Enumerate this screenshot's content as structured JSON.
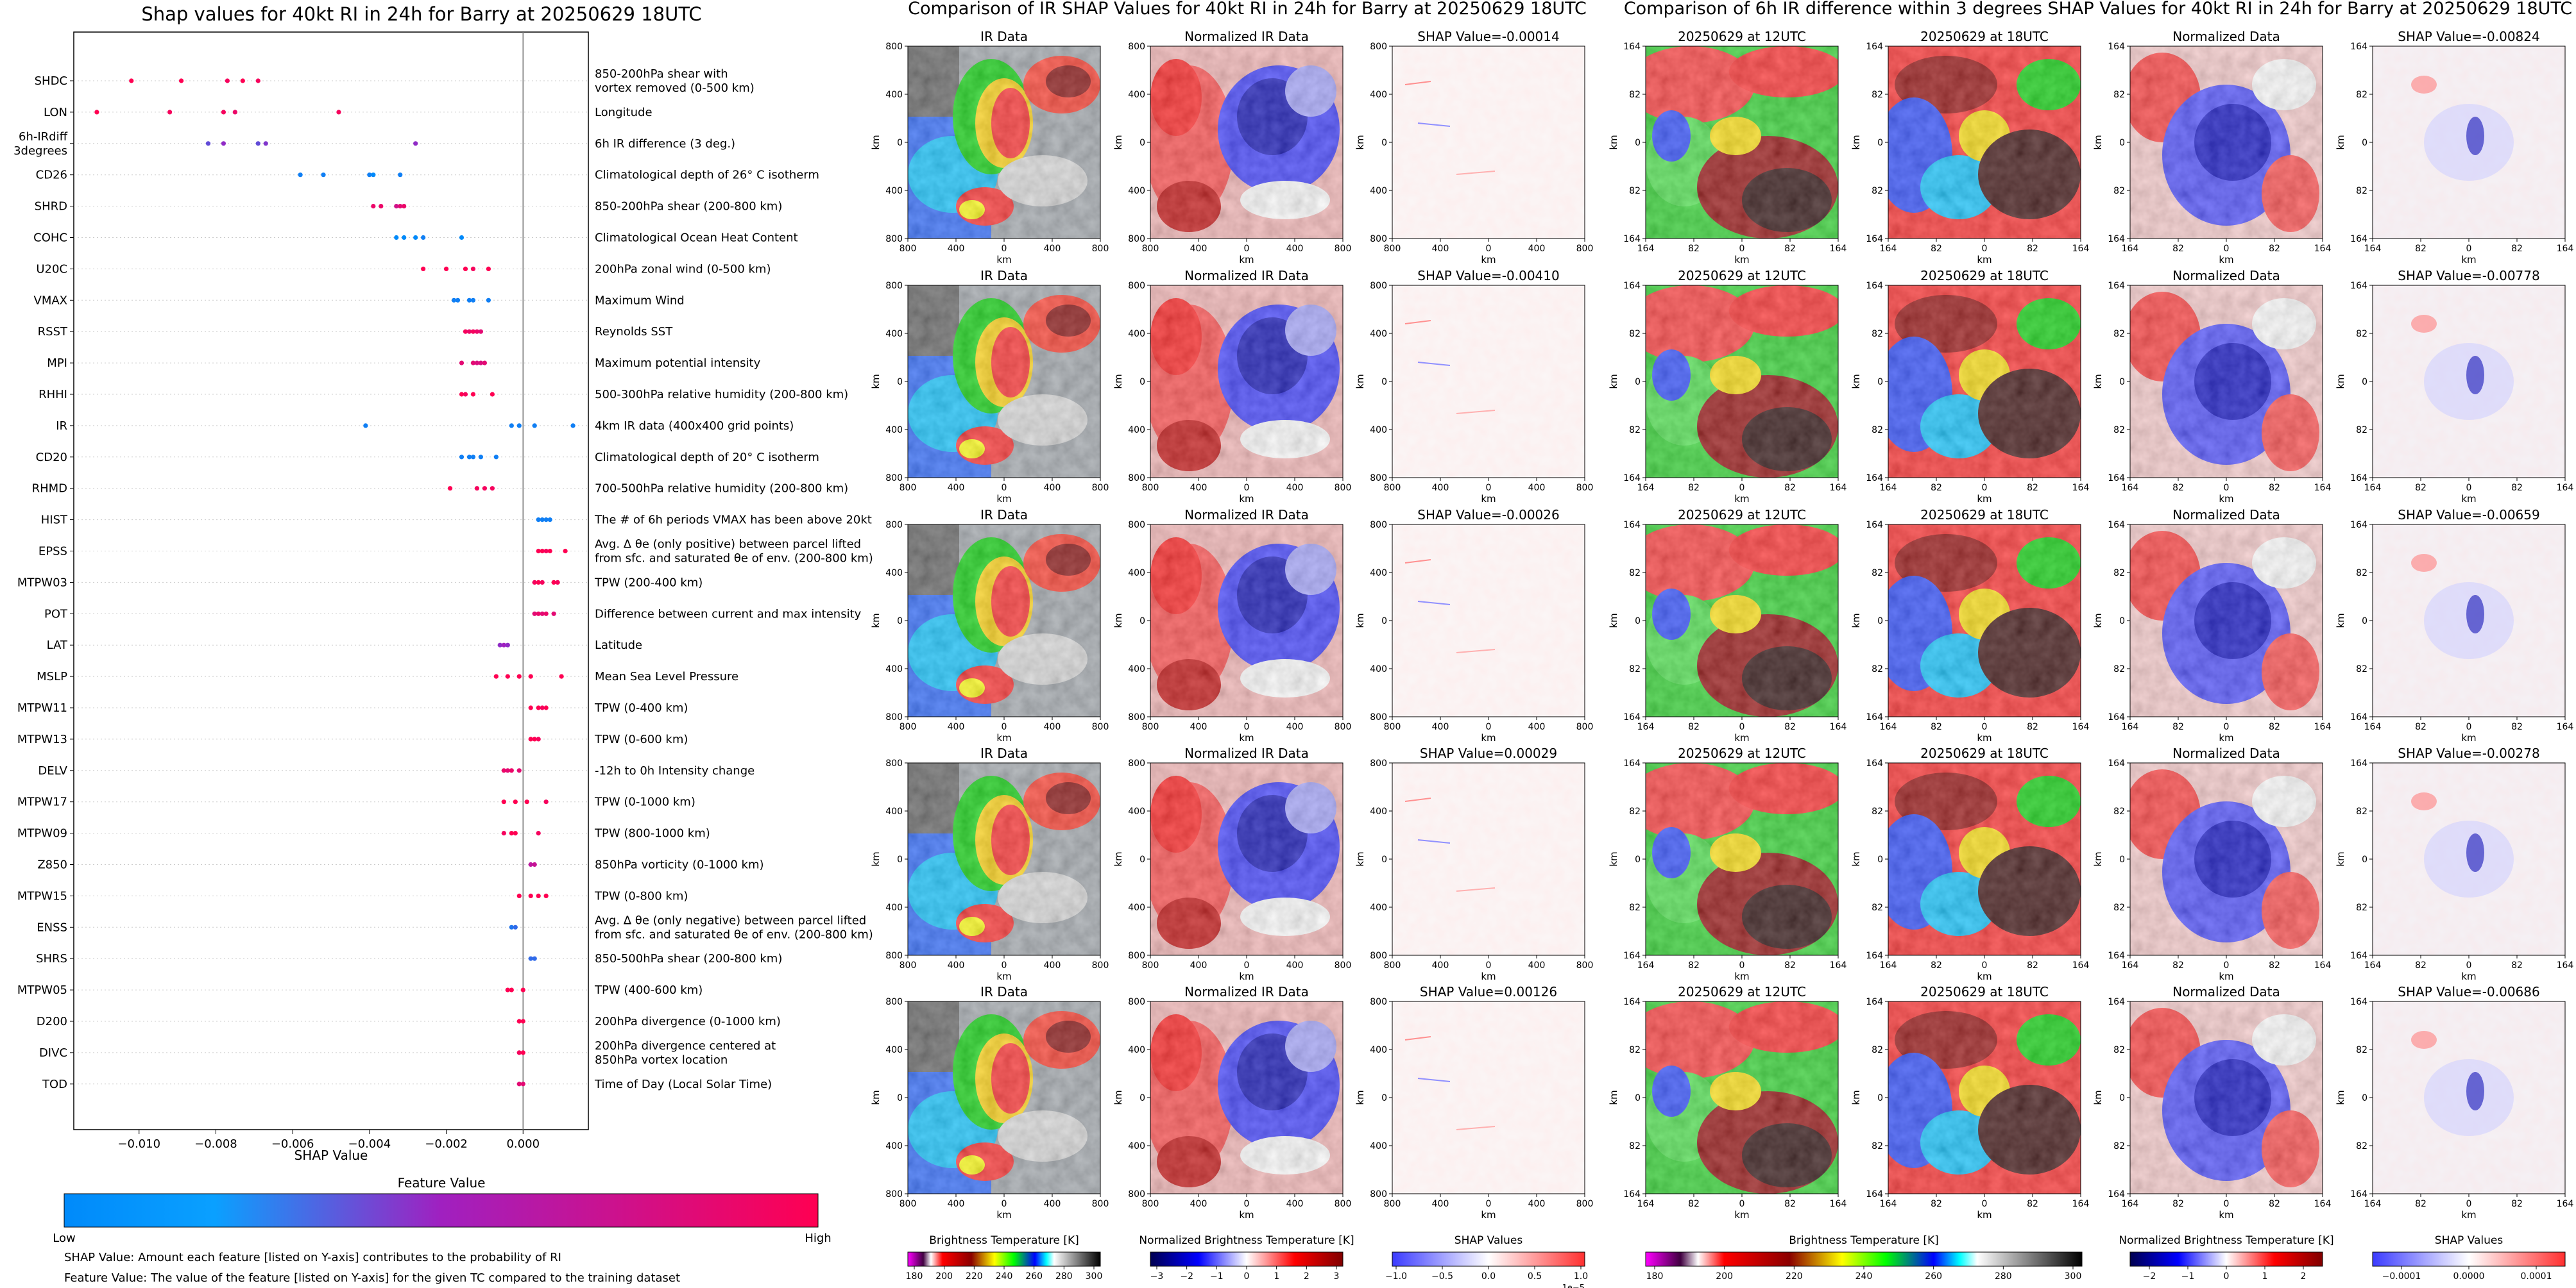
{
  "shap_panel": {
    "title": "Shap values for 40kt RI in 24h for Barry at 20250629 18UTC",
    "xlabel": "SHAP Value",
    "colorbar_title": "Feature Value",
    "colorbar_low": "Low",
    "colorbar_high": "High",
    "note_shap": "SHAP Value: Amount each feature [listed on Y-axis] contributes to the probability of RI",
    "note_feature": "Feature Value: The value of the feature [listed on Y-axis] for the given TC compared to the training dataset"
  },
  "ir_block": {
    "title": "Comparison of IR SHAP Values for 40kt RI in 24h for Barry at 20250629 18UTC",
    "col_titles": [
      "IR Data",
      "Normalized IR Data"
    ],
    "shap_titles": [
      "SHAP Value=-0.00014",
      "SHAP Value=-0.00410",
      "SHAP Value=-0.00026",
      "SHAP Value=0.00029",
      "SHAP Value=0.00126"
    ],
    "axis_label": "km",
    "ticks": [
      "800",
      "400",
      "0",
      "400",
      "800"
    ],
    "colorbars": [
      {
        "label": "Brightness Temperature [K]",
        "ticks": [
          "180",
          "200",
          "220",
          "240",
          "260",
          "280",
          "300"
        ]
      },
      {
        "label": "Normalized Brightness Temperature [K]",
        "ticks": [
          "−3",
          "−2",
          "−1",
          "0",
          "1",
          "2",
          "3"
        ]
      },
      {
        "label": "SHAP Values",
        "ticks": [
          "−1.0",
          "−0.5",
          "0.0",
          "0.5",
          "1.0"
        ],
        "offset": "1e−5"
      }
    ]
  },
  "diff_block": {
    "title": "Comparison of 6h IR difference within 3 degrees SHAP Values for 40kt RI in 24h for Barry at 20250629 18UTC",
    "col_titles": [
      "20250629 at 12UTC",
      "20250629 at 18UTC",
      "Normalized Data"
    ],
    "shap_titles": [
      "SHAP Value=-0.00824",
      "SHAP Value=-0.00778",
      "SHAP Value=-0.00659",
      "SHAP Value=-0.00278",
      "SHAP Value=-0.00686"
    ],
    "axis_label": "km",
    "ticks": [
      "164",
      "82",
      "0",
      "82",
      "164"
    ],
    "colorbars": [
      {
        "label": "Brightness Temperature [K]",
        "ticks": [
          "180",
          "200",
          "220",
          "240",
          "260",
          "280",
          "300"
        ]
      },
      {
        "label": "Normalized Brightness Temperature [K]",
        "ticks": [
          "−2",
          "−1",
          "0",
          "1",
          "2"
        ]
      },
      {
        "label": "SHAP Values",
        "ticks": [
          "−0.0001",
          "0.0000",
          "0.0001"
        ]
      }
    ]
  },
  "chart_data": {
    "type": "scatter",
    "title": "Shap values for 40kt RI in 24h for Barry at 20250629 18UTC",
    "xlabel": "SHAP Value",
    "ylabel": "",
    "xlim": [
      -0.0117,
      0.0017
    ],
    "xticks": [
      -0.01,
      -0.008,
      -0.006,
      -0.004,
      -0.002,
      0.0
    ],
    "xtick_labels": [
      "−0.010",
      "−0.008",
      "−0.006",
      "−0.004",
      "−0.002",
      "0.000"
    ],
    "colors": {
      "low": "#008afa",
      "mid": "#a020c0",
      "high": "#ff0052"
    },
    "features": [
      {
        "name": "SHDC",
        "description": "850-200hPa shear with\nvortex removed (0-500 km)",
        "shap": [
          -0.0102,
          -0.0089,
          -0.0077,
          -0.0073,
          -0.0069
        ],
        "value": [
          1,
          1,
          0.95,
          1,
          0.95
        ]
      },
      {
        "name": "LON",
        "description": "Longitude",
        "shap": [
          -0.0111,
          -0.0092,
          -0.0078,
          -0.0075,
          -0.0048
        ],
        "value": [
          1,
          0.95,
          0.95,
          0.9,
          0.95
        ]
      },
      {
        "name": "6h-IRdiff\n3degrees",
        "description": "6h IR difference (3 deg.)",
        "shap": [
          -0.0082,
          -0.0078,
          -0.0069,
          -0.0067,
          -0.0028
        ],
        "value": [
          0.3,
          0.45,
          0.3,
          0.4,
          0.45
        ]
      },
      {
        "name": "CD26",
        "description": "Climatological depth of 26° C isotherm",
        "shap": [
          -0.0058,
          -0.0052,
          -0.004,
          -0.0039,
          -0.0032
        ],
        "value": [
          0.05,
          0.05,
          0.05,
          0,
          0.05
        ]
      },
      {
        "name": "SHRD",
        "description": "850-200hPa shear (200-800 km)",
        "shap": [
          -0.0039,
          -0.0037,
          -0.0033,
          -0.0032,
          -0.0031
        ],
        "value": [
          0.9,
          0.9,
          0.75,
          0.85,
          0.9
        ]
      },
      {
        "name": "COHC",
        "description": "Climatological Ocean Heat Content",
        "shap": [
          -0.0033,
          -0.0031,
          -0.0028,
          -0.0026,
          -0.0016
        ],
        "value": [
          0,
          0,
          0,
          0.05,
          0
        ]
      },
      {
        "name": "U20C",
        "description": "200hPa zonal wind (0-500 km)",
        "shap": [
          -0.0026,
          -0.002,
          -0.0015,
          -0.0013,
          -0.0009
        ],
        "value": [
          1,
          1,
          1,
          0.95,
          1
        ]
      },
      {
        "name": "VMAX",
        "description": "Maximum Wind",
        "shap": [
          -0.0018,
          -0.0017,
          -0.0014,
          -0.0013,
          -0.0009
        ],
        "value": [
          0.05,
          0.05,
          0.05,
          0.05,
          0.05
        ]
      },
      {
        "name": "RSST",
        "description": "Reynolds SST",
        "shap": [
          -0.0015,
          -0.0014,
          -0.0013,
          -0.0012,
          -0.0011
        ],
        "value": [
          0.95,
          0.9,
          0.95,
          0.9,
          0.85
        ]
      },
      {
        "name": "MPI",
        "description": "Maximum potential intensity",
        "shap": [
          -0.0016,
          -0.0013,
          -0.0012,
          -0.0011,
          -0.001
        ],
        "value": [
          0.85,
          0.85,
          0.8,
          0.8,
          0.85
        ]
      },
      {
        "name": "RHHI",
        "description": "500-300hPa relative humidity (200-800 km)",
        "shap": [
          -0.0016,
          -0.0015,
          -0.0013,
          -0.0008
        ],
        "value": [
          1,
          0.95,
          1,
          1
        ]
      },
      {
        "name": "IR",
        "description": "4km IR data (400x400 grid points)",
        "shap": [
          -0.0041,
          -0.0003,
          -0.0001,
          0.0003,
          0.0013
        ],
        "value": [
          0.05,
          0.05,
          0.05,
          0.05,
          0.05
        ]
      },
      {
        "name": "CD20",
        "description": "Climatological depth of 20° C isotherm",
        "shap": [
          -0.0016,
          -0.0014,
          -0.0013,
          -0.0011,
          -0.0007
        ],
        "value": [
          0.05,
          0.05,
          0.05,
          0.05,
          0.05
        ]
      },
      {
        "name": "RHMD",
        "description": "700-500hPa relative humidity (200-800 km)",
        "shap": [
          -0.0019,
          -0.0012,
          -0.001,
          -0.0008
        ],
        "value": [
          1,
          0.95,
          0.95,
          0.95
        ]
      },
      {
        "name": "HIST",
        "description": "The # of 6h periods VMAX has been above 20kt",
        "shap": [
          0.0004,
          0.0005,
          0.0006,
          0.0007
        ],
        "value": [
          0.05,
          0.05,
          0.05,
          0.05
        ]
      },
      {
        "name": "EPSS",
        "description": "Avg. Δ θe (only positive) between parcel lifted\nfrom sfc. and saturated θe of env. (200-800 km)",
        "shap": [
          0.0004,
          0.0005,
          0.0006,
          0.0007,
          0.0011
        ],
        "value": [
          1,
          1,
          0.95,
          1,
          1
        ]
      },
      {
        "name": "MTPW03",
        "description": "TPW (200-400 km)",
        "shap": [
          0.0003,
          0.0004,
          0.0005,
          0.0008,
          0.0009
        ],
        "value": [
          0.95,
          1,
          0.95,
          1,
          0.95
        ]
      },
      {
        "name": "POT",
        "description": "Difference between current and max intensity",
        "shap": [
          0.0003,
          0.0004,
          0.0005,
          0.0006,
          0.0008
        ],
        "value": [
          0.85,
          0.9,
          0.85,
          0.9,
          0.85
        ]
      },
      {
        "name": "LAT",
        "description": "Latitude",
        "shap": [
          -0.0006,
          -0.0005,
          -0.0004
        ],
        "value": [
          0.45,
          0.5,
          0.45
        ]
      },
      {
        "name": "MSLP",
        "description": "Mean Sea Level Pressure",
        "shap": [
          -0.0007,
          -0.0004,
          -0.0001,
          0.0002,
          0.001
        ],
        "value": [
          1,
          1,
          1,
          1,
          1
        ]
      },
      {
        "name": "MTPW11",
        "description": "TPW (0-400 km)",
        "shap": [
          0.0002,
          0.0004,
          0.0005,
          0.0006
        ],
        "value": [
          1,
          1,
          0.95,
          1
        ]
      },
      {
        "name": "MTPW13",
        "description": "TPW (0-600 km)",
        "shap": [
          0.0002,
          0.0003,
          0.0004
        ],
        "value": [
          1,
          1,
          0.95
        ]
      },
      {
        "name": "DELV",
        "description": "-12h to 0h Intensity change",
        "shap": [
          -0.0005,
          -0.0004,
          -0.0003,
          -0.0001
        ],
        "value": [
          0.9,
          0.85,
          0.9,
          0.85
        ]
      },
      {
        "name": "MTPW17",
        "description": "TPW (0-1000 km)",
        "shap": [
          -0.0005,
          -0.0002,
          0.0001,
          0.0006
        ],
        "value": [
          1,
          1,
          1,
          0.95
        ]
      },
      {
        "name": "MTPW09",
        "description": "TPW (800-1000 km)",
        "shap": [
          -0.0005,
          -0.0003,
          -0.0002,
          0.0004
        ],
        "value": [
          0.95,
          1,
          1,
          0.95
        ]
      },
      {
        "name": "Z850",
        "description": "850hPa vorticity (0-1000 km)",
        "shap": [
          0.0002,
          0.0003
        ],
        "value": [
          0.65,
          0.7
        ]
      },
      {
        "name": "MTPW15",
        "description": "TPW (0-800 km)",
        "shap": [
          -0.0001,
          0.0002,
          0.0004,
          0.0006
        ],
        "value": [
          1,
          1,
          1,
          1
        ]
      },
      {
        "name": "ENSS",
        "description": "Avg. Δ θe (only negative) between parcel lifted\nfrom sfc. and saturated θe of env. (200-800 km)",
        "shap": [
          -0.0003,
          -0.0002
        ],
        "value": [
          0.1,
          0.15
        ]
      },
      {
        "name": "SHRS",
        "description": "850-500hPa shear (200-800 km)",
        "shap": [
          0.0002,
          0.0003
        ],
        "value": [
          0.15,
          0.15
        ]
      },
      {
        "name": "MTPW05",
        "description": "TPW (400-600 km)",
        "shap": [
          -0.0004,
          -0.0003,
          0.0
        ],
        "value": [
          1,
          1,
          1
        ]
      },
      {
        "name": "D200",
        "description": "200hPa divergence (0-1000 km)",
        "shap": [
          -0.0001,
          0.0
        ],
        "value": [
          1,
          1
        ]
      },
      {
        "name": "DIVC",
        "description": "200hPa divergence centered at\n850hPa vortex location",
        "shap": [
          -0.0001,
          0.0
        ],
        "value": [
          0.95,
          1
        ]
      },
      {
        "name": "TOD",
        "description": "Time of Day (Local Solar Time)",
        "shap": [
          -0.0001,
          0.0
        ],
        "value": [
          0.85,
          0.85
        ]
      }
    ]
  }
}
